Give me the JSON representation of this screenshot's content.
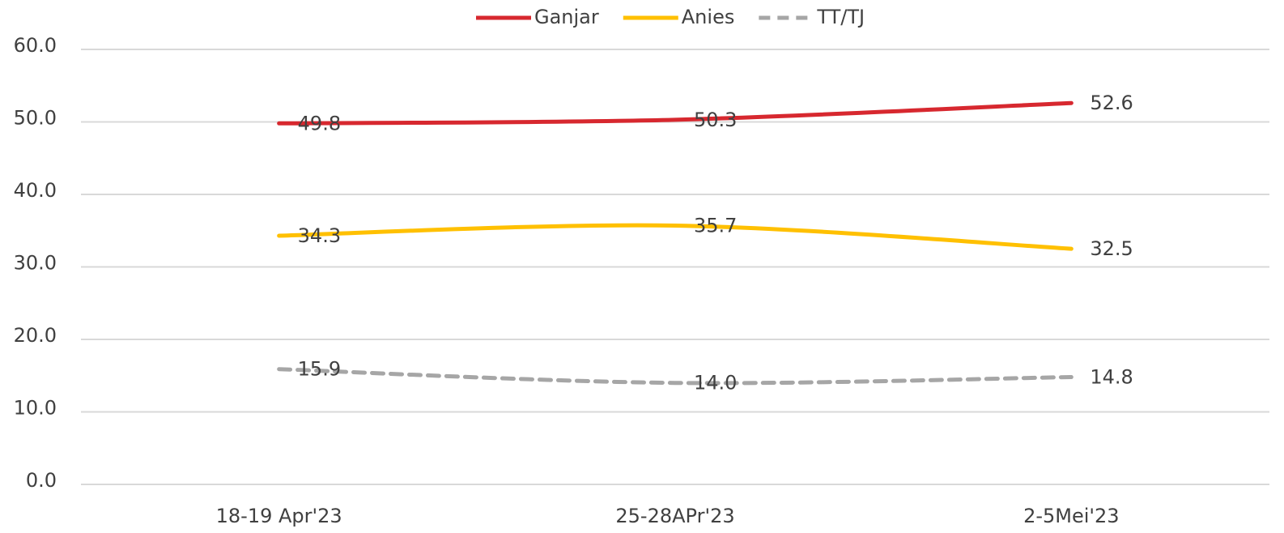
{
  "chart_data": {
    "type": "line",
    "categories": [
      "18-19 Apr'23",
      "25-28APr'23",
      "2-5Mei'23"
    ],
    "series": [
      {
        "name": "Ganjar",
        "color": "#d7282f",
        "values": [
          49.8,
          50.3,
          52.6
        ]
      },
      {
        "name": "Anies",
        "color": "#ffc000",
        "values": [
          34.3,
          35.7,
          32.5
        ]
      },
      {
        "name": "TT/TJ",
        "color": "#a6a6a6",
        "dashed": true,
        "values": [
          15.9,
          14.0,
          14.8
        ],
        "value_labels": [
          "15.9",
          "14.0",
          "14.8"
        ]
      }
    ],
    "ylim": [
      0,
      60
    ],
    "yticks": [
      {
        "value": 0,
        "label": "0.0"
      },
      {
        "value": 10,
        "label": "10.0"
      },
      {
        "value": 20,
        "label": "20.0"
      },
      {
        "value": 30,
        "label": "30.0"
      },
      {
        "value": 40,
        "label": "40.0"
      },
      {
        "value": 50,
        "label": "50.0"
      },
      {
        "value": 60,
        "label": "60.0"
      }
    ],
    "grid": true,
    "smooth": true,
    "legend": "top"
  }
}
